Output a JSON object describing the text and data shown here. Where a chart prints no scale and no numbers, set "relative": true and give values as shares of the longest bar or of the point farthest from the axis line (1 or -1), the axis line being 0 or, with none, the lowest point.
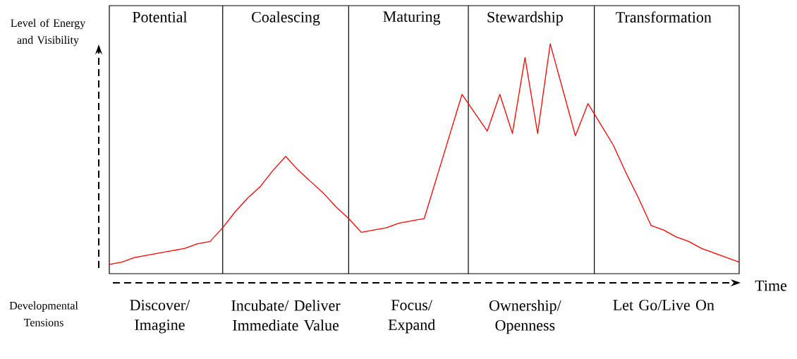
{
  "chart_data": {
    "type": "line",
    "relative": true,
    "ylabel": "Level of Energy and Visibility",
    "xlabel": "Time",
    "categories": [
      null,
      null,
      null,
      null,
      "Potential",
      null,
      null,
      null,
      null,
      null,
      null,
      null,
      null,
      null,
      "Coalescing",
      null,
      null,
      null,
      null,
      null,
      null,
      null,
      null,
      null,
      "Maturing",
      null,
      null,
      null,
      null,
      null,
      null,
      null,
      null,
      "Stewardship",
      null,
      null,
      null,
      null,
      null,
      null,
      null,
      null,
      null,
      null,
      "Transformation",
      null,
      null,
      null,
      null,
      null,
      null
    ],
    "tick_labels": "x",
    "series": [
      {
        "color": "#ff0000",
        "values": [
          0.04,
          0.05,
          0.07,
          0.08,
          0.09,
          0.1,
          0.11,
          0.13,
          0.14,
          0.2,
          0.27,
          0.33,
          0.38,
          0.45,
          0.51,
          0.45,
          0.4,
          0.35,
          0.29,
          0.24,
          0.18,
          0.19,
          0.2,
          0.22,
          0.23,
          0.24,
          0.42,
          0.6,
          0.78,
          0.7,
          0.62,
          0.78,
          0.61,
          0.94,
          0.61,
          1.0,
          0.8,
          0.6,
          0.74,
          0.65,
          0.56,
          0.44,
          0.33,
          0.21,
          0.19,
          0.16,
          0.14,
          0.11,
          0.09,
          0.07,
          0.05
        ]
      }
    ],
    "annotations": [
      "Developmental Tensions",
      "Discover/ Imagine",
      "Incubate/ Deliver Immediate Value",
      "Focus/ Expand",
      "Ownership/ Openness",
      "Let Go/Live On"
    ],
    "marker": "none",
    "line_style": "solid"
  }
}
